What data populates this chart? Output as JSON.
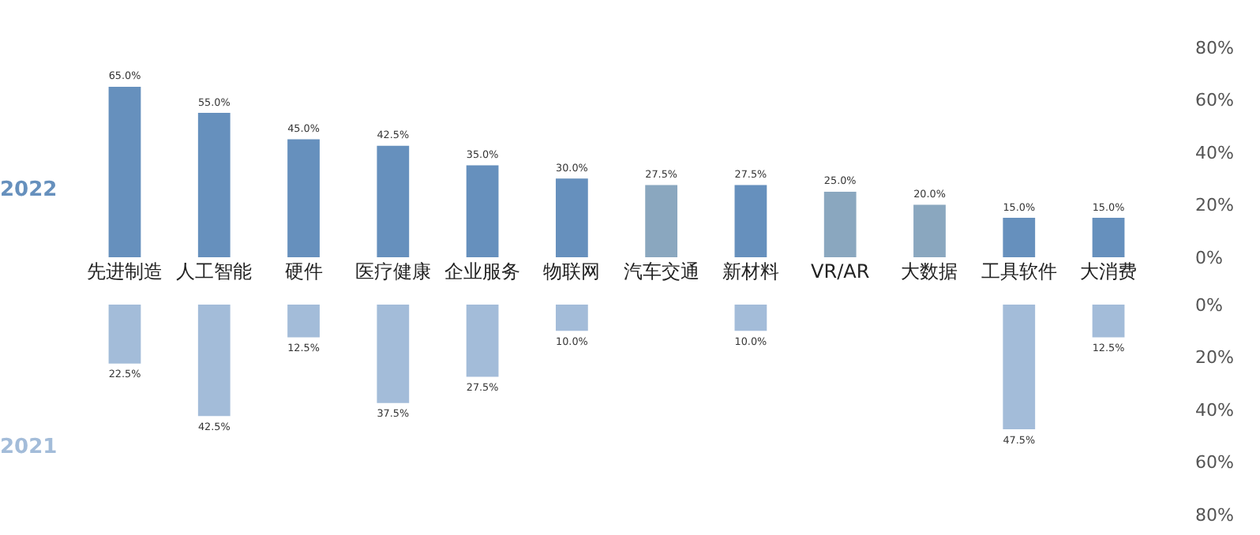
{
  "chart_data": [
    {
      "type": "bar",
      "categories": [
        "先进制造",
        "人工智能",
        "硬件",
        "医疗健康",
        "企业服务",
        "物联网",
        "汽车交通",
        "新材料",
        "VR/AR",
        "大数据",
        "工具软件",
        "大消费"
      ],
      "series": [
        {
          "name": "2022",
          "color": "#6690bd",
          "colors": [
            "#6690bd",
            "#6690bd",
            "#6690bd",
            "#6690bd",
            "#6690bd",
            "#6690bd",
            "#8aa7bf",
            "#6690bd",
            "#8aa7bf",
            "#8aa7bf",
            "#6690bd",
            "#6690bd"
          ],
          "values": [
            65.0,
            55.0,
            45.0,
            42.5,
            35.0,
            30.0,
            27.5,
            27.5,
            25.0,
            20.0,
            15.0,
            15.0
          ],
          "value_labels": [
            "65.0%",
            "55.0%",
            "45.0%",
            "42.5%",
            "35.0%",
            "30.0%",
            "27.5%",
            "27.5%",
            "25.0%",
            "20.0%",
            "15.0%",
            "15.0%"
          ]
        }
      ],
      "ylim": [
        0,
        80
      ],
      "yticks": [
        {
          "value": 0,
          "label": "0%"
        },
        {
          "value": 20,
          "label": "20%"
        },
        {
          "value": 40,
          "label": "40%"
        },
        {
          "value": 60,
          "label": "60%"
        },
        {
          "value": 80,
          "label": "80%"
        }
      ]
    },
    {
      "type": "bar",
      "categories": [
        null,
        null,
        null,
        null,
        null,
        null,
        null,
        null,
        null,
        null,
        null,
        null
      ],
      "series": [
        {
          "name": "2021",
          "color": "#a3bcd9",
          "values": [
            22.5,
            42.5,
            12.5,
            37.5,
            27.5,
            10.0,
            null,
            10.0,
            null,
            null,
            47.5,
            12.5
          ],
          "value_labels": [
            "22.5%",
            "42.5%",
            "12.5%",
            "37.5%",
            "27.5%",
            "10.0%",
            null,
            "10.0%",
            null,
            null,
            "47.5%",
            "12.5%"
          ]
        }
      ],
      "ylim": [
        80,
        0
      ],
      "yticks": [
        {
          "value": 0,
          "label": "0%"
        },
        {
          "value": 20,
          "label": "20%"
        },
        {
          "value": 40,
          "label": "40%"
        },
        {
          "value": 60,
          "label": "60%"
        },
        {
          "value": 80,
          "label": "80%"
        }
      ],
      "tick_labels": "y"
    }
  ]
}
